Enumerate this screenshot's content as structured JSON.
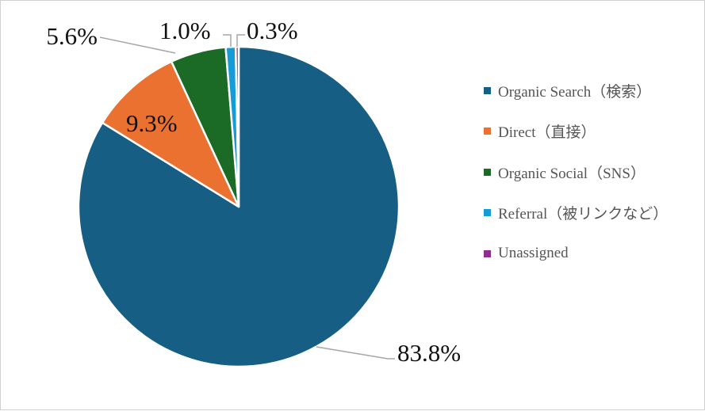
{
  "chart_data": {
    "type": "pie",
    "title": "",
    "categories": [
      "Organic Search（検索）",
      "Direct（直接）",
      "Organic Social（SNS）",
      "Referral（被リンクなど）",
      "Unassigned"
    ],
    "values": [
      83.8,
      9.3,
      5.6,
      1.0,
      0.3
    ],
    "data_labels": [
      "83.8%",
      "9.3%",
      "5.6%",
      "1.0%",
      "0.3%"
    ],
    "colors": [
      "#165e83",
      "#eb7131",
      "#1b6a25",
      "#159bd6",
      "#8e2d8e"
    ],
    "legend_position": "right",
    "start_angle": "top, clockwise"
  }
}
